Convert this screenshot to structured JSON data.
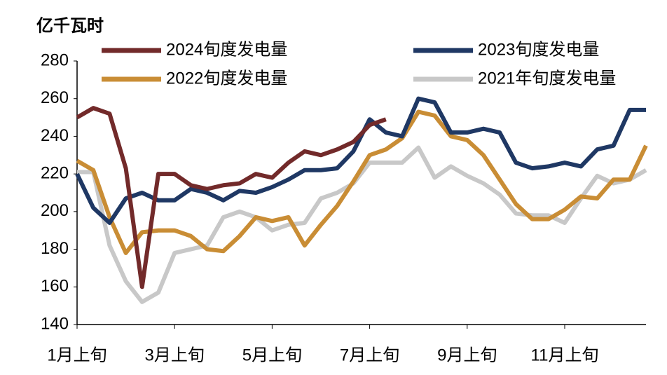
{
  "chart_data": {
    "type": "line",
    "y_axis_label": "亿千瓦时",
    "categories": [
      "1月上旬",
      null,
      null,
      null,
      null,
      null,
      "3月上旬",
      null,
      null,
      null,
      null,
      null,
      "5月上旬",
      null,
      null,
      null,
      null,
      null,
      "7月上旬",
      null,
      null,
      null,
      null,
      null,
      "9月上旬",
      null,
      null,
      null,
      null,
      null,
      "11月上旬",
      null,
      null,
      null,
      null,
      null
    ],
    "series": [
      {
        "name": "2024旬度发电量",
        "color": "#722a2a",
        "values": [
          250,
          255,
          252,
          223,
          160,
          220,
          220,
          214,
          212,
          214,
          215,
          220,
          218,
          226,
          232,
          230,
          233,
          237,
          246,
          249,
          null,
          null,
          null,
          null,
          null,
          null,
          null,
          null,
          null,
          null,
          null,
          null,
          null,
          null,
          null,
          null
        ]
      },
      {
        "name": "2023旬度发电量",
        "color": "#1f3864",
        "values": [
          220,
          202,
          194,
          207,
          210,
          206,
          206,
          212,
          210,
          206,
          211,
          210,
          213,
          217,
          222,
          222,
          223,
          232,
          249,
          242,
          240,
          260,
          258,
          242,
          242,
          244,
          242,
          226,
          223,
          224,
          226,
          224,
          233,
          235,
          254,
          254
        ]
      },
      {
        "name": "2022旬度发电量",
        "color": "#c98d35",
        "values": [
          227,
          222,
          197,
          178,
          189,
          190,
          190,
          187,
          180,
          179,
          187,
          197,
          195,
          197,
          182,
          193,
          203,
          216,
          230,
          233,
          239,
          253,
          251,
          240,
          238,
          230,
          217,
          204,
          196,
          196,
          201,
          208,
          207,
          217,
          217,
          235
        ]
      },
      {
        "name": "2021年旬度发电量",
        "color": "#c8c8c8",
        "values": [
          221,
          221,
          182,
          163,
          152,
          157,
          178,
          180,
          182,
          197,
          200,
          197,
          190,
          193,
          194,
          207,
          210,
          215,
          226,
          226,
          226,
          234,
          218,
          224,
          219,
          215,
          209,
          199,
          198,
          198,
          194,
          207,
          219,
          215,
          217,
          222
        ]
      }
    ],
    "ylim": [
      140,
      280
    ],
    "yticks": [
      140,
      160,
      180,
      200,
      220,
      240,
      260,
      280
    ],
    "grid": false
  }
}
